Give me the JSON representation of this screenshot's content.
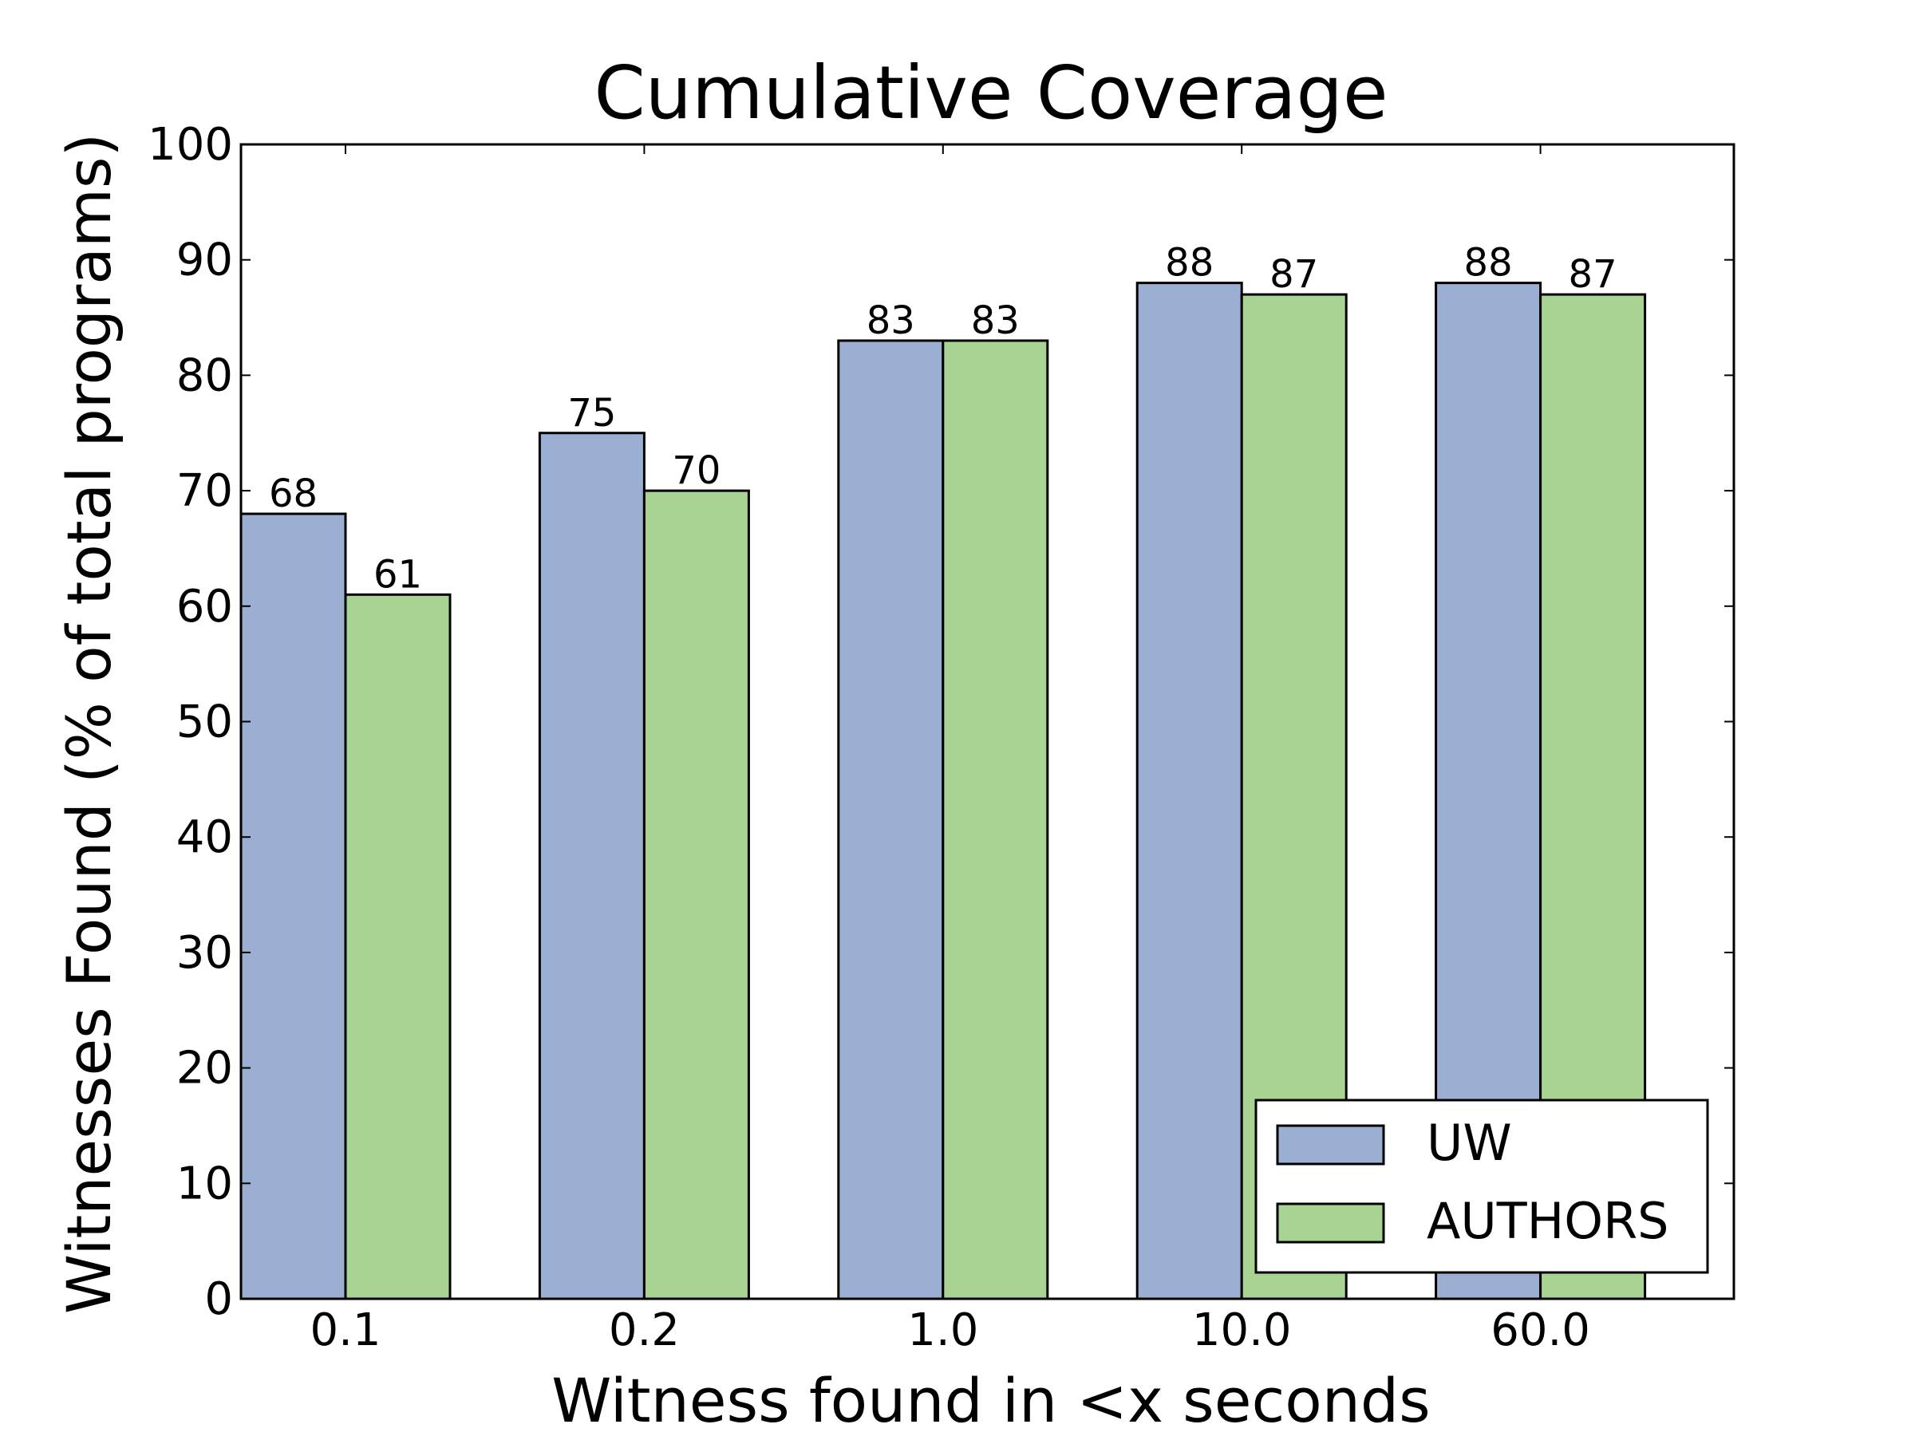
{
  "chart_data": {
    "type": "bar",
    "title": "Cumulative Coverage",
    "xlabel": "Witness found in <x seconds",
    "ylabel": "Witnesses Found (% of total programs)",
    "categories": [
      "0.1",
      "0.2",
      "1.0",
      "10.0",
      "60.0"
    ],
    "series": [
      {
        "name": "UW",
        "values": [
          68,
          75,
          83,
          88,
          88
        ],
        "color": "#9BAFD2"
      },
      {
        "name": "AUTHORS",
        "values": [
          61,
          70,
          83,
          87,
          87
        ],
        "color": "#A8D392"
      }
    ],
    "ylim": [
      0,
      100
    ],
    "yticks": [
      "0",
      "10",
      "20",
      "30",
      "40",
      "50",
      "60",
      "70",
      "80",
      "90",
      "100"
    ],
    "grid": false,
    "legend_position": "lower-right"
  }
}
